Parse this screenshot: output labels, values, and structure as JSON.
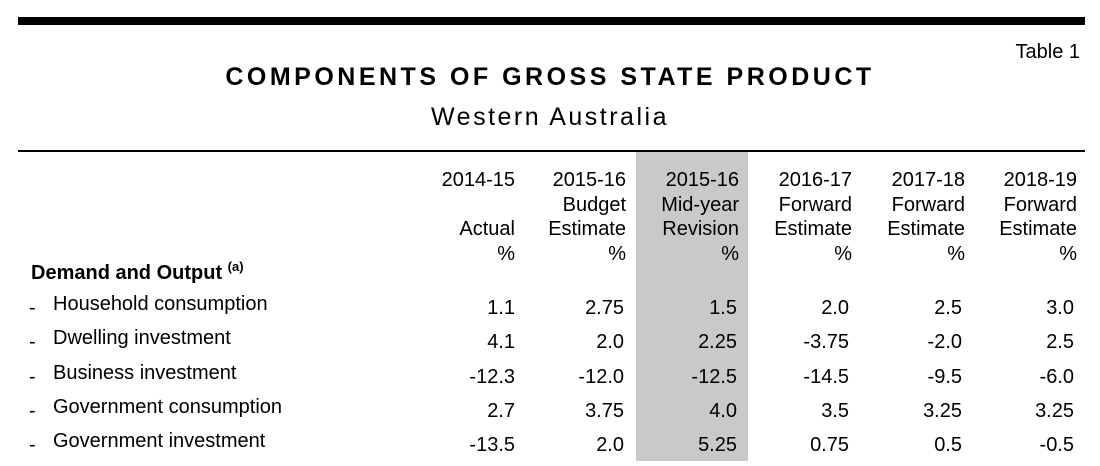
{
  "table_ref": "Table 1",
  "title": "COMPONENTS OF GROSS STATE PRODUCT",
  "subtitle": "Western Australia",
  "section": {
    "label": "Demand and Output",
    "note": "(a)"
  },
  "columns": [
    {
      "year": "2014-15",
      "line2": "",
      "line3": "Actual",
      "unit": "%",
      "highlight": false
    },
    {
      "year": "2015-16",
      "line2": "Budget",
      "line3": "Estimate",
      "unit": "%",
      "highlight": false
    },
    {
      "year": "2015-16",
      "line2": "Mid-year",
      "line3": "Revision",
      "unit": "%",
      "highlight": true
    },
    {
      "year": "2016-17",
      "line2": "Forward",
      "line3": "Estimate",
      "unit": "%",
      "highlight": false
    },
    {
      "year": "2017-18",
      "line2": "Forward",
      "line3": "Estimate",
      "unit": "%",
      "highlight": false
    },
    {
      "year": "2018-19",
      "line2": "Forward",
      "line3": "Estimate",
      "unit": "%",
      "highlight": false
    }
  ],
  "rows": [
    {
      "dash": "-",
      "label": "Household consumption",
      "values": [
        "1.1",
        "2.75",
        "1.5",
        "2.0",
        "2.5",
        "3.0"
      ]
    },
    {
      "dash": "-",
      "label": "Dwelling investment",
      "values": [
        "4.1",
        "2.0",
        "2.25",
        "-3.75",
        "-2.0",
        "2.5"
      ]
    },
    {
      "dash": "-",
      "label": "Business investment",
      "values": [
        "-12.3",
        "-12.0",
        "-12.5",
        "-14.5",
        "-9.5",
        "-6.0"
      ]
    },
    {
      "dash": "-",
      "label": "Government consumption",
      "values": [
        "2.7",
        "3.75",
        "4.0",
        "3.5",
        "3.25",
        "3.25"
      ]
    },
    {
      "dash": "-",
      "label": "Government investment",
      "values": [
        "-13.5",
        "2.0",
        "5.25",
        "0.75",
        "0.5",
        "-0.5"
      ]
    }
  ],
  "colors": {
    "highlight": "#c9c9c9",
    "text": "#000000",
    "rule": "#000000"
  }
}
